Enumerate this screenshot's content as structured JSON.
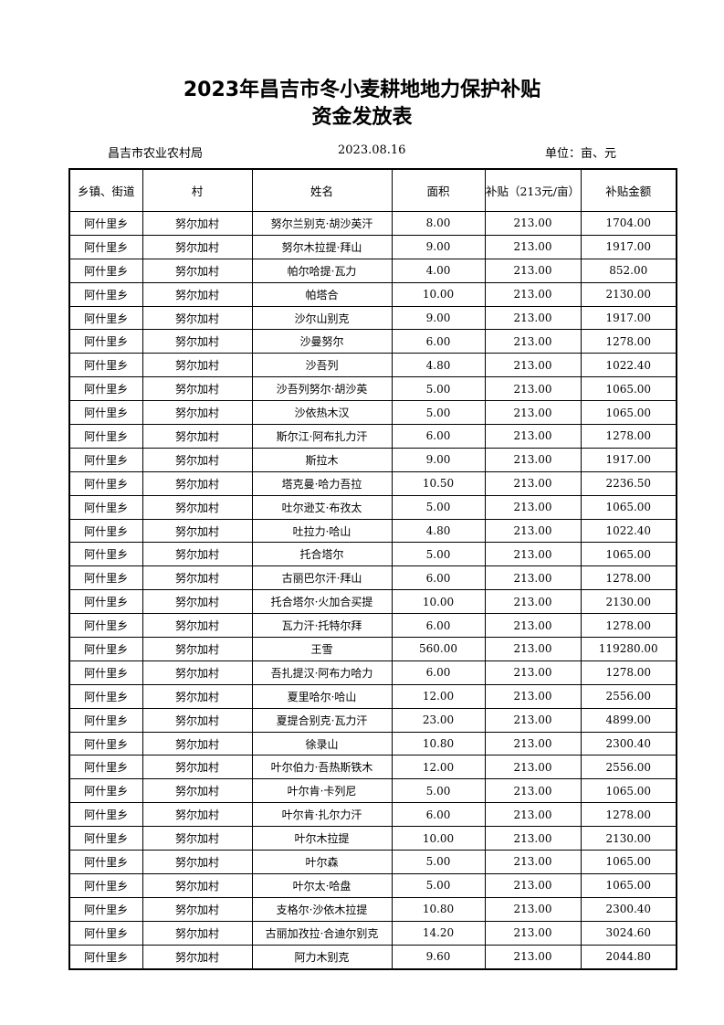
{
  "title_line1": "2023年昌吉市冬小麦耕地地力保护补贴",
  "title_line2": "资金发放表",
  "issuer": "昌吉市农业农村局",
  "date": "2023.08.16",
  "unit": "单位：亩、元",
  "columns": [
    "乡镇、街道",
    "村",
    "姓名",
    "面积",
    "补贴（213元/亩）",
    "补贴金额"
  ],
  "rows": [
    [
      "阿什里乡",
      "努尔加村",
      "努尔兰别克·胡沙英汗",
      "8.00",
      "213.00",
      "1704.00"
    ],
    [
      "阿什里乡",
      "努尔加村",
      "努尔木拉提·拜山",
      "9.00",
      "213.00",
      "1917.00"
    ],
    [
      "阿什里乡",
      "努尔加村",
      "帕尔哈提·瓦力",
      "4.00",
      "213.00",
      "852.00"
    ],
    [
      "阿什里乡",
      "努尔加村",
      "帕塔合",
      "10.00",
      "213.00",
      "2130.00"
    ],
    [
      "阿什里乡",
      "努尔加村",
      "沙尔山别克",
      "9.00",
      "213.00",
      "1917.00"
    ],
    [
      "阿什里乡",
      "努尔加村",
      "沙曼努尔",
      "6.00",
      "213.00",
      "1278.00"
    ],
    [
      "阿什里乡",
      "努尔加村",
      "沙吾列",
      "4.80",
      "213.00",
      "1022.40"
    ],
    [
      "阿什里乡",
      "努尔加村",
      "沙吾列努尔·胡沙英",
      "5.00",
      "213.00",
      "1065.00"
    ],
    [
      "阿什里乡",
      "努尔加村",
      "沙依热木汉",
      "5.00",
      "213.00",
      "1065.00"
    ],
    [
      "阿什里乡",
      "努尔加村",
      "斯尔江·阿布扎力汗",
      "6.00",
      "213.00",
      "1278.00"
    ],
    [
      "阿什里乡",
      "努尔加村",
      "斯拉木",
      "9.00",
      "213.00",
      "1917.00"
    ],
    [
      "阿什里乡",
      "努尔加村",
      "塔克曼·哈力吾拉",
      "10.50",
      "213.00",
      "2236.50"
    ],
    [
      "阿什里乡",
      "努尔加村",
      "吐尔逊艾·布孜太",
      "5.00",
      "213.00",
      "1065.00"
    ],
    [
      "阿什里乡",
      "努尔加村",
      "吐拉力·哈山",
      "4.80",
      "213.00",
      "1022.40"
    ],
    [
      "阿什里乡",
      "努尔加村",
      "托合塔尔",
      "5.00",
      "213.00",
      "1065.00"
    ],
    [
      "阿什里乡",
      "努尔加村",
      "古丽巴尔汗·拜山",
      "6.00",
      "213.00",
      "1278.00"
    ],
    [
      "阿什里乡",
      "努尔加村",
      "托合塔尔·火加合买提",
      "10.00",
      "213.00",
      "2130.00"
    ],
    [
      "阿什里乡",
      "努尔加村",
      "瓦力汗·托特尔拜",
      "6.00",
      "213.00",
      "1278.00"
    ],
    [
      "阿什里乡",
      "努尔加村",
      "王雪",
      "560.00",
      "213.00",
      "119280.00"
    ],
    [
      "阿什里乡",
      "努尔加村",
      "吾扎提汉·阿布力哈力",
      "6.00",
      "213.00",
      "1278.00"
    ],
    [
      "阿什里乡",
      "努尔加村",
      "夏里哈尔·哈山",
      "12.00",
      "213.00",
      "2556.00"
    ],
    [
      "阿什里乡",
      "努尔加村",
      "夏提合别克·瓦力汗",
      "23.00",
      "213.00",
      "4899.00"
    ],
    [
      "阿什里乡",
      "努尔加村",
      "徐录山",
      "10.80",
      "213.00",
      "2300.40"
    ],
    [
      "阿什里乡",
      "努尔加村",
      "叶尔伯力·吾热斯铁木",
      "12.00",
      "213.00",
      "2556.00"
    ],
    [
      "阿什里乡",
      "努尔加村",
      "叶尔肯·卡列尼",
      "5.00",
      "213.00",
      "1065.00"
    ],
    [
      "阿什里乡",
      "努尔加村",
      "叶尔肯·扎尔力汗",
      "6.00",
      "213.00",
      "1278.00"
    ],
    [
      "阿什里乡",
      "努尔加村",
      "叶尔木拉提",
      "10.00",
      "213.00",
      "2130.00"
    ],
    [
      "阿什里乡",
      "努尔加村",
      "叶尔森",
      "5.00",
      "213.00",
      "1065.00"
    ],
    [
      "阿什里乡",
      "努尔加村",
      "叶尔太·哈盘",
      "5.00",
      "213.00",
      "1065.00"
    ],
    [
      "阿什里乡",
      "努尔加村",
      "支格尔·沙依木拉提",
      "10.80",
      "213.00",
      "2300.40"
    ],
    [
      "阿什里乡",
      "努尔加村",
      "古丽加孜拉·合迪尔别克",
      "14.20",
      "213.00",
      "3024.60"
    ],
    [
      "阿什里乡",
      "努尔加村",
      "阿力木别克",
      "9.60",
      "213.00",
      "2044.80"
    ]
  ]
}
